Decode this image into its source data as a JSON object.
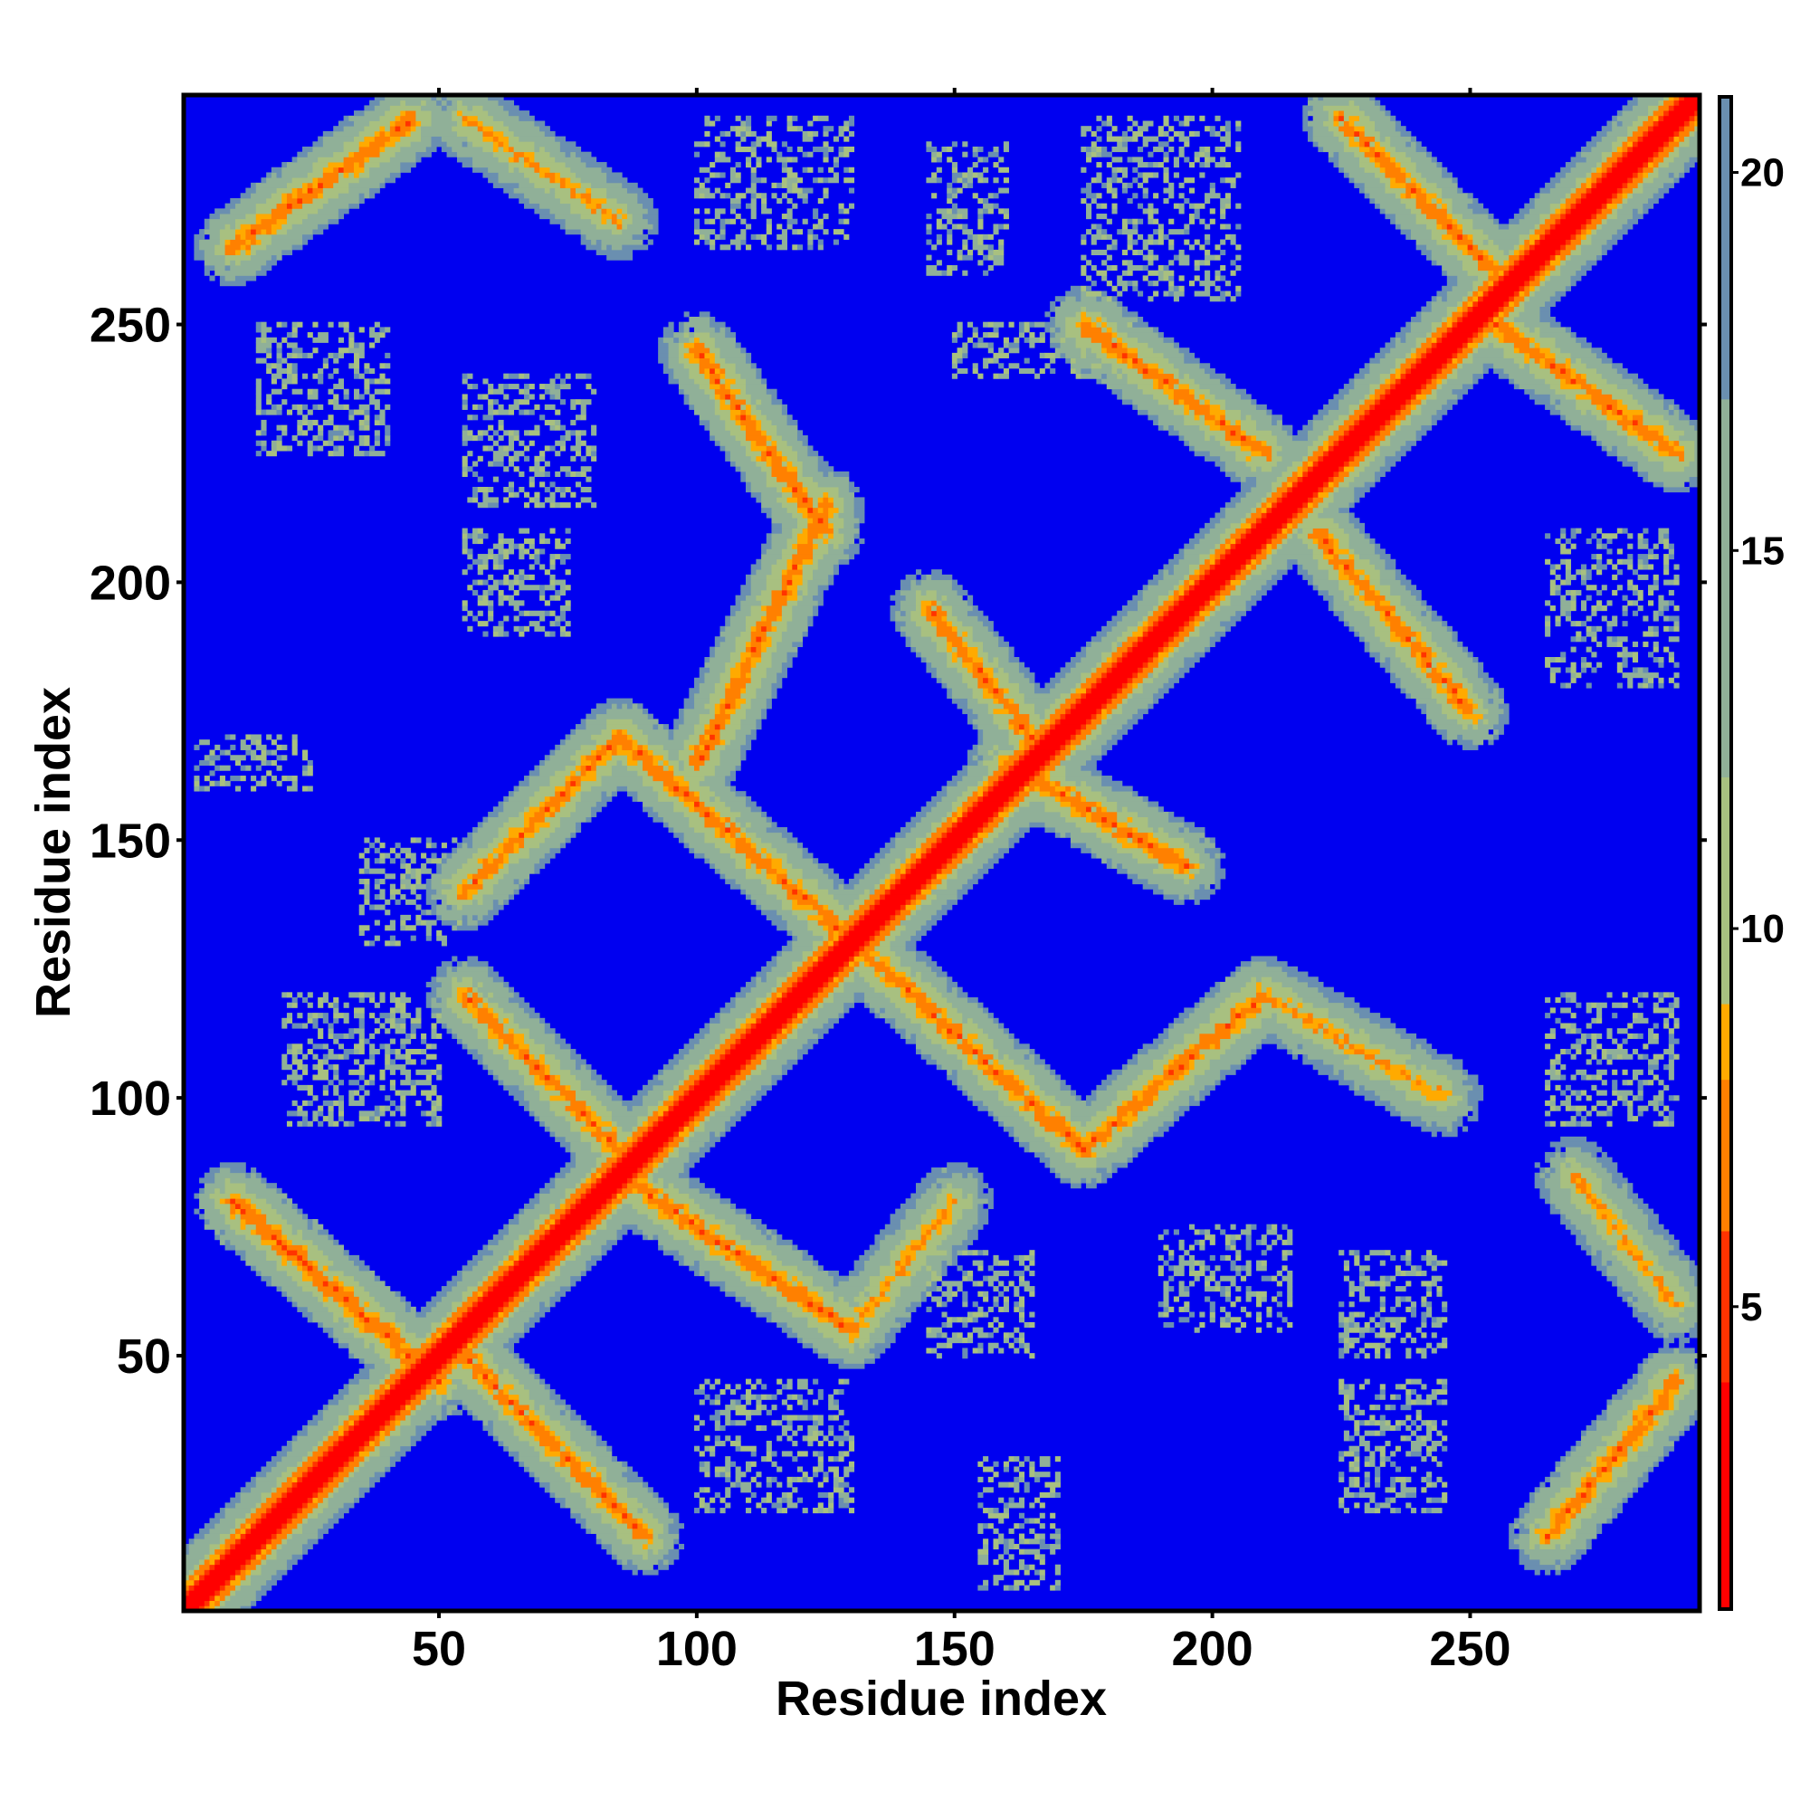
{
  "chart_data": {
    "type": "heatmap",
    "title": "",
    "xlabel": "Residue index",
    "ylabel": "Residue index",
    "xlim": [
      1,
      294
    ],
    "ylim": [
      1,
      294
    ],
    "x_ticks": [
      50,
      100,
      150,
      200,
      250
    ],
    "y_ticks": [
      50,
      100,
      150,
      200,
      250
    ],
    "colorbar": {
      "ticks": [
        5,
        10,
        15,
        20
      ],
      "range": [
        1,
        21
      ],
      "colors": [
        {
          "value": 1,
          "color": "#ff0000"
        },
        {
          "value": 4,
          "color": "#ff3300"
        },
        {
          "value": 6,
          "color": "#ff8000"
        },
        {
          "value": 8,
          "color": "#ffaa00"
        },
        {
          "value": 9,
          "color": "#a8c080"
        },
        {
          "value": 12,
          "color": "#90b098"
        },
        {
          "value": 17,
          "color": "#6a8fb0"
        },
        {
          "value": 21,
          "color": "#0000ff"
        }
      ]
    },
    "background_color": "#0000f0",
    "diagonal": {
      "from": 1,
      "to": 294,
      "min_distance": 1
    },
    "contact_bands": [
      {
        "x": [
          10,
          50
        ],
        "y": [
          80,
          45
        ],
        "min_distance": 4.5
      },
      {
        "x": [
          55,
          90
        ],
        "y": [
          50,
          15
        ],
        "min_distance": 5
      },
      {
        "x": [
          55,
          85
        ],
        "y": [
          120,
          90
        ],
        "min_distance": 5
      },
      {
        "x": [
          85,
          130
        ],
        "y": [
          85,
          55
        ],
        "min_distance": 5
      },
      {
        "x": [
          130,
          150
        ],
        "y": [
          55,
          80
        ],
        "min_distance": 6
      },
      {
        "x": [
          55,
          85
        ],
        "y": [
          140,
          170
        ],
        "min_distance": 5
      },
      {
        "x": [
          85,
          125
        ],
        "y": [
          170,
          135
        ],
        "min_distance": 5
      },
      {
        "x": [
          125,
          175
        ],
        "y": [
          135,
          90
        ],
        "min_distance": 5
      },
      {
        "x": [
          175,
          210
        ],
        "y": [
          90,
          120
        ],
        "min_distance": 5
      },
      {
        "x": [
          210,
          245
        ],
        "y": [
          120,
          100
        ],
        "min_distance": 6
      },
      {
        "x": [
          100,
          125
        ],
        "y": [
          165,
          215
        ],
        "min_distance": 5
      },
      {
        "x": [
          100,
          125
        ],
        "y": [
          245,
          210
        ],
        "min_distance": 5
      },
      {
        "x": [
          145,
          165
        ],
        "y": [
          195,
          170
        ],
        "min_distance": 5
      },
      {
        "x": [
          160,
          195
        ],
        "y": [
          165,
          145
        ],
        "min_distance": 5
      },
      {
        "x": [
          175,
          210
        ],
        "y": [
          250,
          225
        ],
        "min_distance": 5
      },
      {
        "x": [
          220,
          250
        ],
        "y": [
          210,
          175
        ],
        "min_distance": 5
      },
      {
        "x": [
          10,
          45
        ],
        "y": [
          265,
          290
        ],
        "min_distance": 5
      },
      {
        "x": [
          55,
          85
        ],
        "y": [
          290,
          270
        ],
        "min_distance": 6
      },
      {
        "x": [
          225,
          255
        ],
        "y": [
          290,
          260
        ],
        "min_distance": 5
      },
      {
        "x": [
          255,
          290
        ],
        "y": [
          250,
          225
        ],
        "min_distance": 5
      },
      {
        "x": [
          265,
          290
        ],
        "y": [
          15,
          45
        ],
        "min_distance": 5
      },
      {
        "x": [
          270,
          290
        ],
        "y": [
          85,
          60
        ],
        "min_distance": 6
      }
    ],
    "sparse_patches": [
      {
        "x": [
          15,
          40
        ],
        "y": [
          250,
          225
        ]
      },
      {
        "x": [
          55,
          80
        ],
        "y": [
          240,
          215
        ]
      },
      {
        "x": [
          100,
          130
        ],
        "y": [
          290,
          265
        ]
      },
      {
        "x": [
          145,
          160
        ],
        "y": [
          285,
          260
        ]
      },
      {
        "x": [
          175,
          205
        ],
        "y": [
          290,
          255
        ]
      },
      {
        "x": [
          150,
          185
        ],
        "y": [
          250,
          240
        ]
      },
      {
        "x": [
          55,
          75
        ],
        "y": [
          210,
          190
        ]
      },
      {
        "x": [
          20,
          50
        ],
        "y": [
          120,
          95
        ]
      },
      {
        "x": [
          35,
          55
        ],
        "y": [
          150,
          130
        ]
      },
      {
        "x": [
          100,
          130
        ],
        "y": [
          45,
          20
        ]
      },
      {
        "x": [
          145,
          165
        ],
        "y": [
          70,
          50
        ]
      },
      {
        "x": [
          190,
          215
        ],
        "y": [
          75,
          55
        ]
      },
      {
        "x": [
          225,
          245
        ],
        "y": [
          70,
          50
        ]
      },
      {
        "x": [
          225,
          245
        ],
        "y": [
          45,
          20
        ]
      },
      {
        "x": [
          265,
          290
        ],
        "y": [
          120,
          95
        ]
      },
      {
        "x": [
          265,
          290
        ],
        "y": [
          210,
          180
        ]
      },
      {
        "x": [
          155,
          170
        ],
        "y": [
          30,
          5
        ]
      },
      {
        "x": [
          3,
          25
        ],
        "y": [
          170,
          160
        ]
      }
    ]
  }
}
